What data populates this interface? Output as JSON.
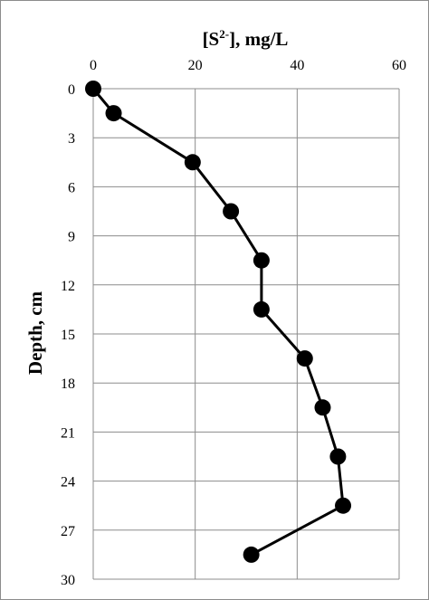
{
  "chart_data": {
    "type": "line",
    "title": "",
    "xlabel_parts": [
      "[S",
      "2-",
      "], mg/L"
    ],
    "xlabel": "[S2-], mg/L",
    "ylabel": "Depth, cm",
    "xlim": [
      0,
      60
    ],
    "ylim": [
      0,
      30
    ],
    "x_axis_position": "top",
    "y_axis_inverted": true,
    "xticks": [
      0,
      20,
      40,
      60
    ],
    "yticks": [
      0,
      3,
      6,
      9,
      12,
      15,
      18,
      21,
      24,
      27,
      30
    ],
    "grid": {
      "vertical": true,
      "horizontal": true
    },
    "colors": {
      "series": "#000000",
      "grid": "#8c8c8c",
      "border": "#8c8c8c"
    },
    "series": [
      {
        "marker": "circle",
        "points": [
          {
            "x": 0,
            "y": 0
          },
          {
            "x": 4,
            "y": 1.5
          },
          {
            "x": 19.5,
            "y": 4.5
          },
          {
            "x": 27,
            "y": 7.5
          },
          {
            "x": 33,
            "y": 10.5
          },
          {
            "x": 33,
            "y": 13.5
          },
          {
            "x": 41.5,
            "y": 16.5
          },
          {
            "x": 45,
            "y": 19.5
          },
          {
            "x": 48,
            "y": 22.5
          },
          {
            "x": 49,
            "y": 25.5
          },
          {
            "x": 31,
            "y": 28.5
          }
        ]
      }
    ]
  }
}
